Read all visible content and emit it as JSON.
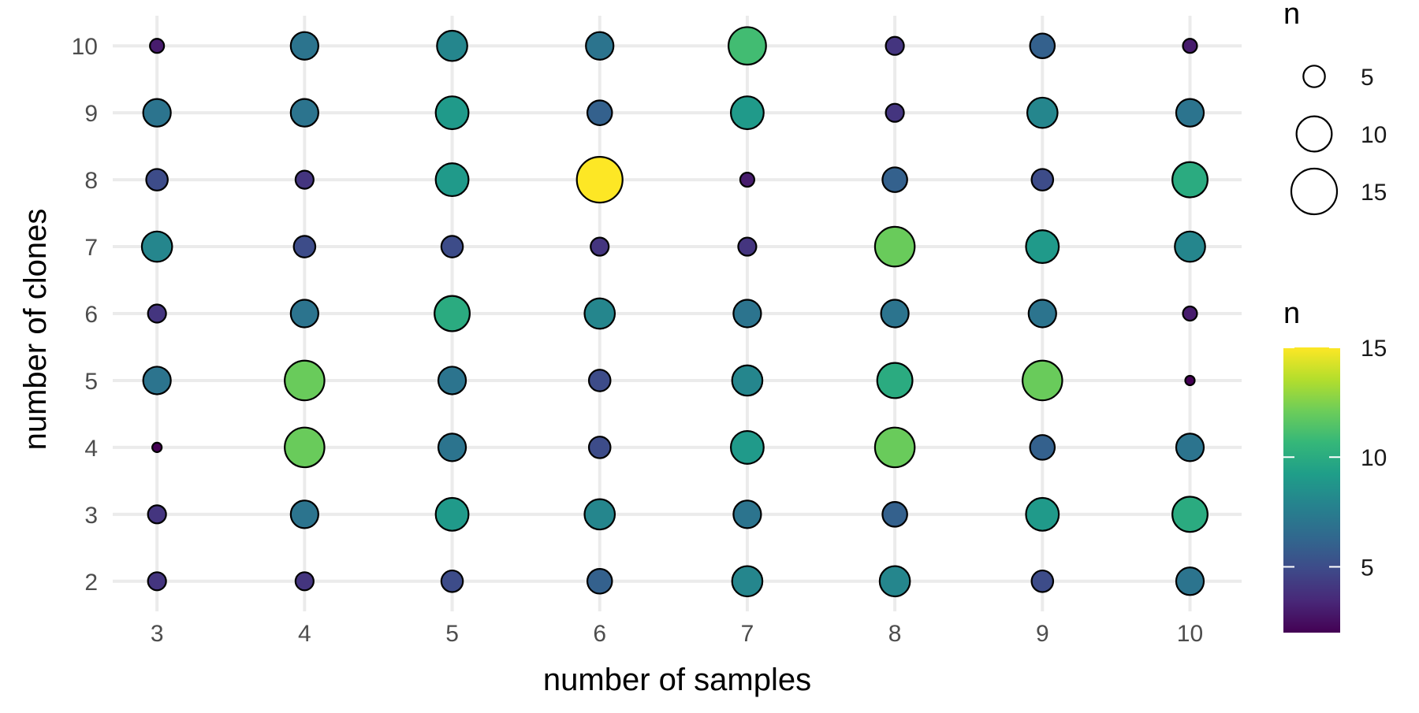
{
  "chart_data": {
    "type": "scatter",
    "title": "",
    "xlabel": "number of samples",
    "ylabel": "number of clones",
    "x_ticks": [
      3,
      4,
      5,
      6,
      7,
      8,
      9,
      10
    ],
    "y_ticks": [
      2,
      3,
      4,
      5,
      6,
      7,
      8,
      9,
      10
    ],
    "xlim": [
      2.7,
      10.35
    ],
    "ylim": [
      1.55,
      10.45
    ],
    "grid": true,
    "size_legend": {
      "title": "n",
      "breaks": [
        5,
        10,
        15
      ]
    },
    "color_legend": {
      "title": "n",
      "breaks": [
        5,
        10,
        15
      ],
      "min": 2,
      "max": 15,
      "palette": [
        "#440154",
        "#482878",
        "#3E4A89",
        "#31688E",
        "#26828E",
        "#1F9E89",
        "#35B779",
        "#6DCD59",
        "#B4DE2C",
        "#FDE725"
      ]
    },
    "points": [
      {
        "x": 3,
        "y": 10,
        "n": 3
      },
      {
        "x": 4,
        "y": 10,
        "n": 7
      },
      {
        "x": 5,
        "y": 10,
        "n": 8
      },
      {
        "x": 6,
        "y": 10,
        "n": 7
      },
      {
        "x": 7,
        "y": 10,
        "n": 11
      },
      {
        "x": 8,
        "y": 10,
        "n": 4
      },
      {
        "x": 9,
        "y": 10,
        "n": 6
      },
      {
        "x": 10,
        "y": 10,
        "n": 3
      },
      {
        "x": 3,
        "y": 9,
        "n": 7
      },
      {
        "x": 4,
        "y": 9,
        "n": 7
      },
      {
        "x": 5,
        "y": 9,
        "n": 9
      },
      {
        "x": 6,
        "y": 9,
        "n": 6
      },
      {
        "x": 7,
        "y": 9,
        "n": 9
      },
      {
        "x": 8,
        "y": 9,
        "n": 4
      },
      {
        "x": 9,
        "y": 9,
        "n": 8
      },
      {
        "x": 10,
        "y": 9,
        "n": 7
      },
      {
        "x": 3,
        "y": 8,
        "n": 5
      },
      {
        "x": 4,
        "y": 8,
        "n": 4
      },
      {
        "x": 5,
        "y": 8,
        "n": 9
      },
      {
        "x": 6,
        "y": 8,
        "n": 15
      },
      {
        "x": 7,
        "y": 8,
        "n": 3
      },
      {
        "x": 8,
        "y": 8,
        "n": 6
      },
      {
        "x": 9,
        "y": 8,
        "n": 5
      },
      {
        "x": 10,
        "y": 8,
        "n": 10
      },
      {
        "x": 3,
        "y": 7,
        "n": 8
      },
      {
        "x": 4,
        "y": 7,
        "n": 5
      },
      {
        "x": 5,
        "y": 7,
        "n": 5
      },
      {
        "x": 6,
        "y": 7,
        "n": 4
      },
      {
        "x": 7,
        "y": 7,
        "n": 4
      },
      {
        "x": 8,
        "y": 7,
        "n": 12
      },
      {
        "x": 9,
        "y": 7,
        "n": 9
      },
      {
        "x": 10,
        "y": 7,
        "n": 8
      },
      {
        "x": 3,
        "y": 6,
        "n": 4
      },
      {
        "x": 4,
        "y": 6,
        "n": 7
      },
      {
        "x": 5,
        "y": 6,
        "n": 10
      },
      {
        "x": 6,
        "y": 6,
        "n": 8
      },
      {
        "x": 7,
        "y": 6,
        "n": 7
      },
      {
        "x": 8,
        "y": 6,
        "n": 7
      },
      {
        "x": 9,
        "y": 6,
        "n": 7
      },
      {
        "x": 10,
        "y": 6,
        "n": 3
      },
      {
        "x": 3,
        "y": 5,
        "n": 7
      },
      {
        "x": 4,
        "y": 5,
        "n": 12
      },
      {
        "x": 5,
        "y": 5,
        "n": 7
      },
      {
        "x": 6,
        "y": 5,
        "n": 5
      },
      {
        "x": 7,
        "y": 5,
        "n": 8
      },
      {
        "x": 8,
        "y": 5,
        "n": 10
      },
      {
        "x": 9,
        "y": 5,
        "n": 12
      },
      {
        "x": 10,
        "y": 5,
        "n": 2
      },
      {
        "x": 3,
        "y": 4,
        "n": 2
      },
      {
        "x": 4,
        "y": 4,
        "n": 12
      },
      {
        "x": 5,
        "y": 4,
        "n": 7
      },
      {
        "x": 6,
        "y": 4,
        "n": 5
      },
      {
        "x": 7,
        "y": 4,
        "n": 9
      },
      {
        "x": 8,
        "y": 4,
        "n": 12
      },
      {
        "x": 9,
        "y": 4,
        "n": 6
      },
      {
        "x": 10,
        "y": 4,
        "n": 7
      },
      {
        "x": 3,
        "y": 3,
        "n": 4
      },
      {
        "x": 4,
        "y": 3,
        "n": 7
      },
      {
        "x": 5,
        "y": 3,
        "n": 9
      },
      {
        "x": 6,
        "y": 3,
        "n": 8
      },
      {
        "x": 7,
        "y": 3,
        "n": 7
      },
      {
        "x": 8,
        "y": 3,
        "n": 6
      },
      {
        "x": 9,
        "y": 3,
        "n": 9
      },
      {
        "x": 10,
        "y": 3,
        "n": 10
      },
      {
        "x": 3,
        "y": 2,
        "n": 4
      },
      {
        "x": 4,
        "y": 2,
        "n": 4
      },
      {
        "x": 5,
        "y": 2,
        "n": 5
      },
      {
        "x": 6,
        "y": 2,
        "n": 6
      },
      {
        "x": 7,
        "y": 2,
        "n": 8
      },
      {
        "x": 8,
        "y": 2,
        "n": 8
      },
      {
        "x": 9,
        "y": 2,
        "n": 5
      },
      {
        "x": 10,
        "y": 2,
        "n": 7
      }
    ]
  }
}
